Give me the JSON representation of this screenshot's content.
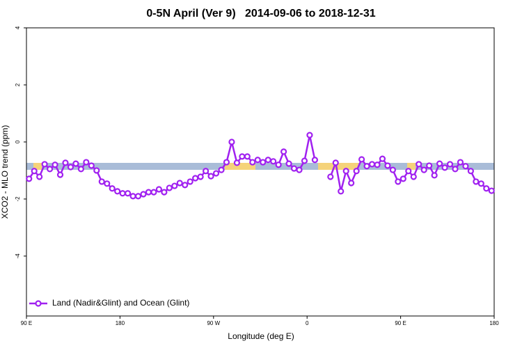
{
  "chart_data": {
    "type": "line",
    "title": "0-5N April (Ver 9)   2014-09-06 to 2018-12-31",
    "x_label": "Longitude (deg E)",
    "y_label": "XCO2 - MLO trend (ppm)",
    "xlim": [
      90,
      540
    ],
    "ylim": [
      -6.1,
      4
    ],
    "xticks": [
      {
        "value": 90,
        "label": "90 E"
      },
      180,
      {
        "value": 270,
        "label": "90 W"
      },
      {
        "value": 360,
        "label": "0"
      },
      {
        "value": 450,
        "label": "90 E"
      },
      {
        "value": 540,
        "label": "180"
      }
    ],
    "yticks": [
      4,
      2,
      0,
      -2,
      -4
    ],
    "legend": "bottom-left",
    "x": [
      92.5,
      97.5,
      102.5,
      107.5,
      112.5,
      117.5,
      122.5,
      127.5,
      132.5,
      137.5,
      142.5,
      147.5,
      152.5,
      157.5,
      162.5,
      167.5,
      172.5,
      177.5,
      182.5,
      187.5,
      192.5,
      197.5,
      202.5,
      207.5,
      212.5,
      217.5,
      222.5,
      227.5,
      232.5,
      237.5,
      242.5,
      247.5,
      252.5,
      257.5,
      262.5,
      267.5,
      272.5,
      277.5,
      282.5,
      287.5,
      292.5,
      297.5,
      302.5,
      307.5,
      312.5,
      317.5,
      322.5,
      327.5,
      332.5,
      337.5,
      342.5,
      347.5,
      352.5,
      357.5,
      362.5,
      367.5,
      372.5,
      377.5,
      382.5,
      387.5,
      392.5,
      397.5,
      402.5,
      407.5,
      412.5,
      417.5,
      422.5,
      427.5,
      432.5,
      437.5,
      442.5,
      447.5,
      452.5,
      457.5,
      462.5,
      467.5,
      472.5,
      477.5,
      482.5,
      487.5,
      492.5,
      497.5,
      502.5,
      507.5,
      512.5,
      517.5,
      522.5,
      527.5,
      532.5,
      537.5
    ],
    "series": [
      {
        "name": "Land (Nadir&Glint) and Ocean (Glint)",
        "color": "#a020f0",
        "values": [
          -1.29,
          -1.02,
          -1.22,
          -0.78,
          -0.95,
          -0.8,
          -1.15,
          -0.73,
          -0.88,
          -0.76,
          -0.95,
          -0.71,
          -0.83,
          -1.0,
          -1.39,
          -1.46,
          -1.63,
          -1.73,
          -1.8,
          -1.8,
          -1.9,
          -1.9,
          -1.83,
          -1.76,
          -1.76,
          -1.66,
          -1.76,
          -1.61,
          -1.54,
          -1.44,
          -1.51,
          -1.39,
          -1.27,
          -1.22,
          -1.02,
          -1.2,
          -1.1,
          -0.98,
          -0.71,
          0.0,
          -0.73,
          -0.51,
          -0.51,
          -0.71,
          -0.63,
          -0.71,
          -0.63,
          -0.68,
          -0.8,
          -0.34,
          -0.76,
          -0.93,
          -0.98,
          -0.66,
          0.24,
          -0.63,
          null,
          null,
          -1.22,
          -0.73,
          -1.73,
          -1.02,
          -1.44,
          -1.02,
          -0.61,
          -0.85,
          -0.78,
          -0.8,
          -0.59,
          -0.83,
          -0.98,
          -1.39,
          -1.29,
          -1.02,
          -1.22,
          -0.78,
          -0.98,
          -0.83,
          -1.17,
          -0.76,
          -0.9,
          -0.78,
          -0.95,
          -0.71,
          -0.85,
          -1.02,
          -1.39,
          -1.46,
          -1.63,
          -1.71
        ]
      }
    ]
  }
}
